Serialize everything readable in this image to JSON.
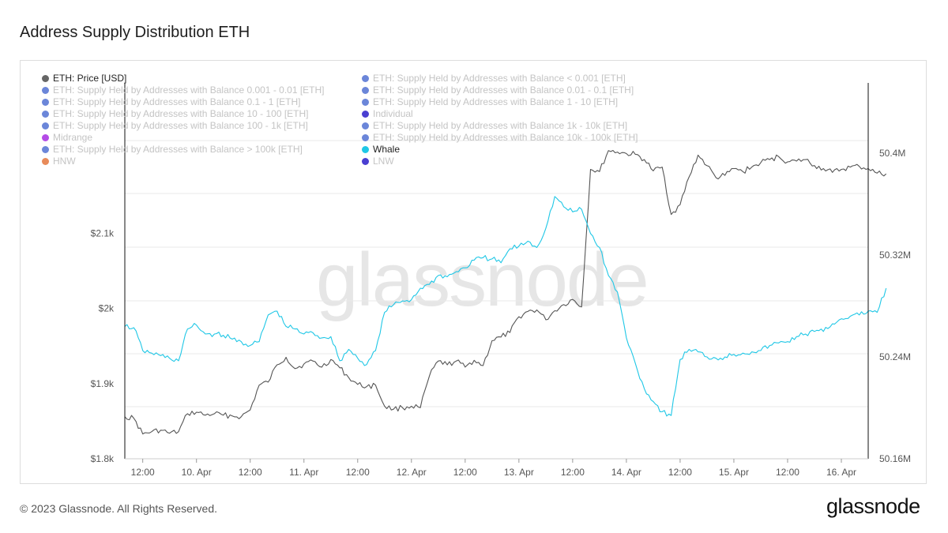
{
  "title": "Address Supply Distribution ETH",
  "footer": "© 2023 Glassnode. All Rights Reserved.",
  "logo": "glassnode",
  "watermark": "glassnode",
  "colors": {
    "price": "#555555",
    "whale": "#1fc7e6",
    "grid": "#e9e9e9",
    "axis": "#111111"
  },
  "legend": [
    {
      "label": "ETH: Price [USD]",
      "color": "#666666",
      "active": true
    },
    {
      "label": "ETH: Supply Held by Addresses with Balance < 0.001 [ETH]",
      "color": "#6b86d9",
      "active": false
    },
    {
      "label": "ETH: Supply Held by Addresses with Balance 0.001 - 0.01 [ETH]",
      "color": "#6b86d9",
      "active": false
    },
    {
      "label": "ETH: Supply Held by Addresses with Balance 0.01 - 0.1 [ETH]",
      "color": "#6b86d9",
      "active": false
    },
    {
      "label": "ETH: Supply Held by Addresses with Balance 0.1 - 1 [ETH]",
      "color": "#6b86d9",
      "active": false
    },
    {
      "label": "ETH: Supply Held by Addresses with Balance 1 - 10 [ETH]",
      "color": "#6b86d9",
      "active": false
    },
    {
      "label": "ETH: Supply Held by Addresses with Balance 10 - 100 [ETH]",
      "color": "#6b86d9",
      "active": false
    },
    {
      "label": "Individual",
      "color": "#4a3fd1",
      "active": false
    },
    {
      "label": "ETH: Supply Held by Addresses with Balance 100 - 1k [ETH]",
      "color": "#6b86d9",
      "active": false
    },
    {
      "label": "ETH: Supply Held by Addresses with Balance 1k - 10k [ETH]",
      "color": "#6b86d9",
      "active": false
    },
    {
      "label": "Midrange",
      "color": "#b44be6",
      "active": false
    },
    {
      "label": "ETH: Supply Held by Addresses with Balance 10k - 100k [ETH]",
      "color": "#6b86d9",
      "active": false
    },
    {
      "label": "ETH: Supply Held by Addresses with Balance > 100k [ETH]",
      "color": "#6b86d9",
      "active": false
    },
    {
      "label": "Whale",
      "color": "#1fc7e6",
      "active": true
    },
    {
      "label": "HNW",
      "color": "#e88b5a",
      "active": false
    },
    {
      "label": "LNW",
      "color": "#4a3fd1",
      "active": false
    }
  ],
  "chart_data": {
    "type": "line",
    "x_ticks": [
      "12:00",
      "10. Apr",
      "12:00",
      "11. Apr",
      "12:00",
      "12. Apr",
      "12:00",
      "13. Apr",
      "12:00",
      "14. Apr",
      "12:00",
      "15. Apr",
      "12:00",
      "16. Apr"
    ],
    "x_range": [
      "2023-04-09 08:00",
      "2023-04-16 06:00"
    ],
    "y_left": {
      "ticks": [
        "$1.8k",
        "$1.9k",
        "$2k",
        "$2.1k"
      ],
      "tick_values": [
        1800,
        1900,
        2000,
        2100
      ],
      "range": [
        1800,
        2300
      ]
    },
    "y_right": {
      "ticks": [
        "50.16M",
        "50.24M",
        "50.32M",
        "50.4M"
      ],
      "tick_values": [
        50.16,
        50.24,
        50.32,
        50.4
      ],
      "range": [
        50.16,
        50.4553
      ]
    },
    "series": [
      {
        "name": "ETH: Price [USD]",
        "axis": "left",
        "x_hours": [
          0,
          2,
          4,
          6,
          8,
          10,
          12,
          14,
          16,
          18,
          20,
          22,
          24,
          26,
          28,
          30,
          32,
          34,
          36,
          38,
          40,
          42,
          44,
          46,
          48,
          50,
          52,
          54,
          56,
          58,
          60,
          62,
          64,
          66,
          68,
          70,
          72,
          74,
          76,
          78,
          80,
          82,
          84,
          86,
          88,
          90,
          92,
          94,
          96,
          98,
          100,
          102,
          104,
          106,
          108,
          110,
          112,
          114,
          116,
          118,
          120,
          122,
          124,
          126,
          128,
          130,
          132,
          134,
          136,
          138,
          140,
          142,
          144,
          146,
          148,
          150,
          152,
          154,
          156,
          158,
          160,
          162,
          164,
          166,
          168,
          170
        ],
        "values": [
          1856,
          1854,
          1833,
          1836,
          1838,
          1834,
          1836,
          1860,
          1862,
          1858,
          1860,
          1858,
          1857,
          1856,
          1865,
          1898,
          1902,
          1925,
          1935,
          1920,
          1926,
          1930,
          1922,
          1932,
          1921,
          1908,
          1899,
          1896,
          1898,
          1870,
          1866,
          1868,
          1870,
          1868,
          1910,
          1930,
          1925,
          1930,
          1922,
          1931,
          1924,
          1957,
          1962,
          1968,
          1989,
          1996,
          1998,
          1985,
          1997,
          2005,
          2012,
          2002,
          2185,
          2182,
          2210,
          2208,
          2206,
          2205,
          2198,
          2183,
          2188,
          2125,
          2138,
          2175,
          2204,
          2190,
          2174,
          2177,
          2186,
          2182,
          2188,
          2194,
          2198,
          2202,
          2195,
          2196,
          2198,
          2190,
          2186,
          2181,
          2185,
          2188,
          2189,
          2186,
          2180,
          2179
        ]
      },
      {
        "name": "Whale",
        "axis": "right",
        "x_hours": [
          0,
          2,
          4,
          6,
          8,
          10,
          12,
          14,
          16,
          18,
          20,
          22,
          24,
          26,
          28,
          30,
          32,
          34,
          36,
          38,
          40,
          42,
          44,
          46,
          48,
          50,
          52,
          54,
          56,
          58,
          60,
          62,
          64,
          66,
          68,
          70,
          72,
          74,
          76,
          78,
          80,
          82,
          84,
          86,
          88,
          90,
          92,
          94,
          96,
          98,
          100,
          102,
          104,
          106,
          108,
          110,
          112,
          114,
          116,
          118,
          120,
          122,
          124,
          126,
          128,
          130,
          132,
          134,
          136,
          138,
          140,
          142,
          144,
          146,
          148,
          150,
          152,
          154,
          156,
          158,
          160,
          162,
          164,
          166,
          168,
          170
        ],
        "values": [
          50.264,
          50.263,
          50.245,
          50.243,
          50.241,
          50.239,
          50.237,
          50.262,
          50.265,
          50.258,
          50.258,
          50.257,
          50.254,
          50.252,
          50.249,
          50.252,
          50.273,
          50.276,
          50.264,
          50.262,
          50.258,
          50.259,
          50.255,
          50.256,
          50.237,
          50.246,
          50.239,
          50.234,
          50.245,
          50.275,
          50.281,
          50.284,
          50.285,
          50.294,
          50.297,
          50.304,
          50.303,
          50.307,
          50.31,
          50.316,
          50.318,
          50.317,
          50.314,
          50.325,
          50.327,
          50.331,
          50.326,
          50.341,
          50.366,
          50.358,
          50.354,
          50.356,
          50.337,
          50.326,
          50.304,
          50.291,
          50.255,
          50.235,
          50.215,
          50.205,
          50.197,
          50.194,
          50.238,
          50.246,
          50.244,
          50.24,
          50.239,
          50.24,
          50.242,
          50.243,
          50.244,
          50.245,
          50.249,
          50.251,
          50.252,
          50.256,
          50.258,
          50.26,
          50.26,
          50.266,
          50.27,
          50.272,
          50.273,
          50.276,
          50.275,
          50.294
        ]
      }
    ]
  }
}
